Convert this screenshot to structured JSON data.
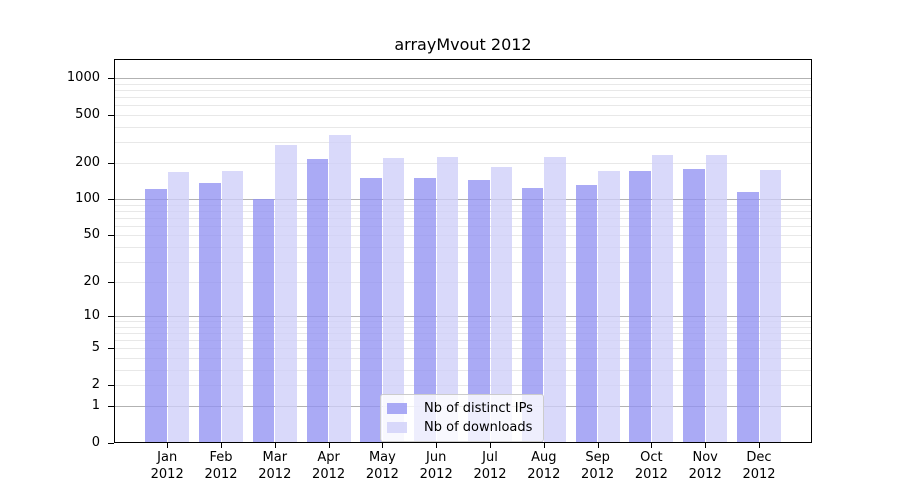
{
  "chart_data": {
    "type": "bar",
    "title": "arrayMvout 2012",
    "xlabel": "",
    "ylabel": "",
    "yscale": "log1p",
    "ylim": [
      0,
      1437
    ],
    "grid": "on",
    "legend_position": "lower center",
    "year_label": "2012",
    "months": [
      "Jan",
      "Feb",
      "Mar",
      "Apr",
      "May",
      "Jun",
      "Jul",
      "Aug",
      "Sep",
      "Oct",
      "Nov",
      "Dec"
    ],
    "categories": [
      "Jan 2012",
      "Feb 2012",
      "Mar 2012",
      "Apr 2012",
      "May 2012",
      "Jun 2012",
      "Jul 2012",
      "Aug 2012",
      "Sep 2012",
      "Oct 2012",
      "Nov 2012",
      "Dec 2012"
    ],
    "series": [
      {
        "name": "Nb of distinct IPs",
        "color": "rgba(146,146,242,0.78)",
        "values": [
          121,
          137,
          101,
          215,
          150,
          149,
          145,
          125,
          131,
          172,
          180,
          116
        ]
      },
      {
        "name": "Nb of downloads",
        "color": "rgba(206,206,248,0.78)",
        "values": [
          170,
          173,
          280,
          340,
          220,
          224,
          186,
          223,
          172,
          234,
          234,
          175
        ]
      }
    ],
    "yticks": [
      {
        "v": 1000,
        "label": "1000"
      },
      {
        "v": 500,
        "label": "500"
      },
      {
        "v": 200,
        "label": "200"
      },
      {
        "v": 100,
        "label": "100"
      },
      {
        "v": 50,
        "label": "50"
      },
      {
        "v": 20,
        "label": "20"
      },
      {
        "v": 10,
        "label": "10"
      },
      {
        "v": 5,
        "label": "5"
      },
      {
        "v": 2,
        "label": "2"
      },
      {
        "v": 1,
        "label": "1"
      },
      {
        "v": 0,
        "label": "0"
      }
    ],
    "gridlines": {
      "major": [
        1,
        10,
        100,
        1000
      ],
      "minor": [
        2,
        3,
        4,
        5,
        6,
        7,
        8,
        9,
        20,
        30,
        40,
        50,
        60,
        70,
        80,
        90,
        200,
        300,
        400,
        500,
        600,
        700,
        800,
        900
      ]
    }
  }
}
